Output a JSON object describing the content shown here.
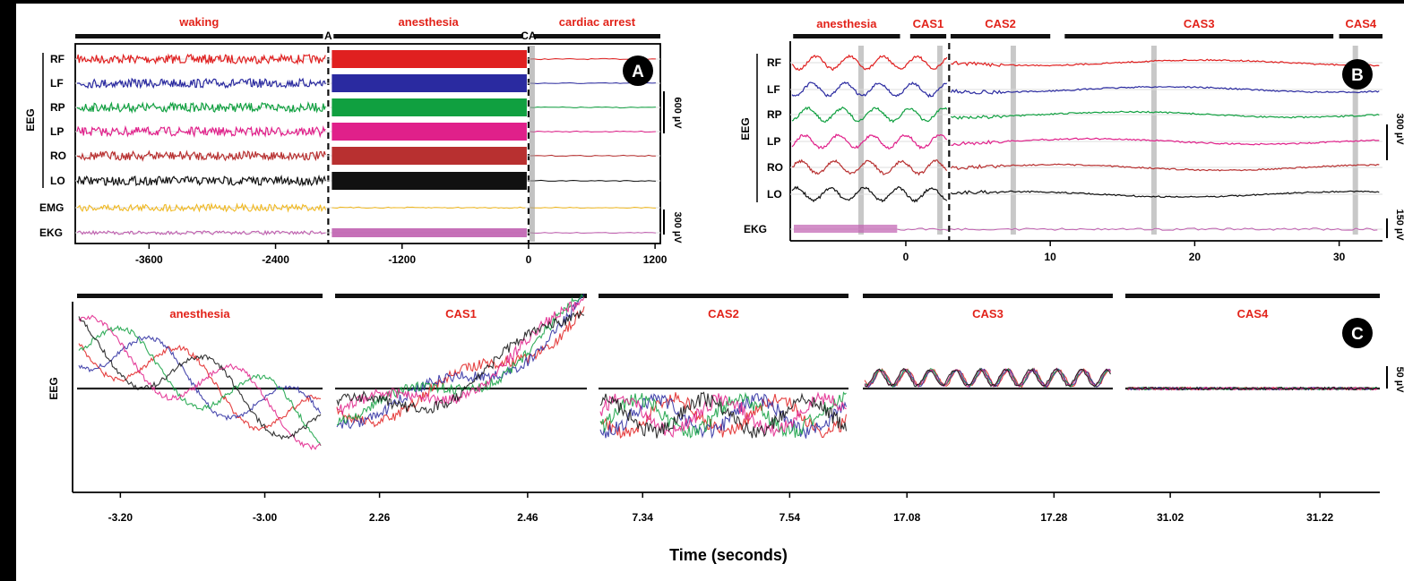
{
  "figure": {
    "xlabel": "Time (seconds)"
  },
  "colors": {
    "RF": "#e02020",
    "LF": "#2a2aa0",
    "RP": "#10a040",
    "LP": "#e0208a",
    "RO": "#b83030",
    "LO": "#111111",
    "EMG": "#f0b820",
    "EKG": "#c060b0"
  },
  "chart_data": [
    {
      "panel": "A",
      "type": "line",
      "ylabel": "EEG",
      "channels": [
        "RF",
        "LF",
        "RP",
        "LP",
        "RO",
        "LO"
      ],
      "extra_channels": [
        "EMG",
        "EKG"
      ],
      "segments": [
        {
          "label": "waking",
          "start": -4300,
          "end": -1950
        },
        {
          "label": "anesthesia",
          "start": -1850,
          "end": -50
        },
        {
          "label": "cardiac arrest",
          "start": 50,
          "end": 1250
        }
      ],
      "markers": [
        {
          "label": "A",
          "x": -1900
        },
        {
          "label": "CA",
          "x": 0
        }
      ],
      "x_ticks": [
        {
          "label": "-3600",
          "value": -3600
        },
        {
          "label": "-2400",
          "value": -2400
        },
        {
          "label": "-1200",
          "value": -1200
        },
        {
          "label": "0",
          "value": 0
        },
        {
          "label": "1200",
          "value": 1200
        }
      ],
      "xlim": [
        -4300,
        1250
      ],
      "scale_bars": [
        {
          "label": "600 µV",
          "for": "EEG"
        },
        {
          "label": "300 µV",
          "for": "EMG/EKG"
        }
      ]
    },
    {
      "panel": "B",
      "type": "line",
      "ylabel": "EEG",
      "channels": [
        "RF",
        "LF",
        "RP",
        "LP",
        "RO",
        "LO"
      ],
      "extra_channels": [
        "EKG"
      ],
      "segments": [
        {
          "label": "anesthesia",
          "start": -7.8,
          "end": -0.4
        },
        {
          "label": "CAS1",
          "start": 0.3,
          "end": 2.8
        },
        {
          "label": "CAS2",
          "start": 3.1,
          "end": 10
        },
        {
          "label": "CAS3",
          "start": 11,
          "end": 29.6
        },
        {
          "label": "CAS4",
          "start": 30,
          "end": 33
        }
      ],
      "markers": [
        {
          "label": "",
          "x": 3
        }
      ],
      "highlights": [
        -3.1,
        2.36,
        7.44,
        17.18,
        31.12
      ],
      "x_ticks": [
        {
          "label": "0",
          "value": 0
        },
        {
          "label": "10",
          "value": 10
        },
        {
          "label": "20",
          "value": 20
        },
        {
          "label": "30",
          "value": 30
        }
      ],
      "xlim": [
        -8,
        33
      ],
      "scale_bars": [
        {
          "label": "300 µV",
          "for": "EEG"
        },
        {
          "label": "150 µV",
          "for": "EKG"
        }
      ]
    },
    {
      "panel": "C",
      "type": "line",
      "ylabel": "EEG",
      "windows": [
        {
          "label": "anesthesia",
          "ticks": [
            {
              "label": "-3.20",
              "value": -3.2
            },
            {
              "label": "-3.00",
              "value": -3.0
            }
          ],
          "xlim": [
            -3.26,
            -2.92
          ]
        },
        {
          "label": "CAS1",
          "ticks": [
            {
              "label": "2.26",
              "value": 2.26
            },
            {
              "label": "2.46",
              "value": 2.46
            }
          ],
          "xlim": [
            2.2,
            2.54
          ]
        },
        {
          "label": "CAS2",
          "ticks": [
            {
              "label": "7.34",
              "value": 7.34
            },
            {
              "label": "7.54",
              "value": 7.54
            }
          ],
          "xlim": [
            7.28,
            7.62
          ]
        },
        {
          "label": "CAS3",
          "ticks": [
            {
              "label": "17.08",
              "value": 17.08
            },
            {
              "label": "17.28",
              "value": 17.28
            }
          ],
          "xlim": [
            17.02,
            17.36
          ]
        },
        {
          "label": "CAS4",
          "ticks": [
            {
              "label": "31.02",
              "value": 31.02
            },
            {
              "label": "31.22",
              "value": 31.22
            }
          ],
          "xlim": [
            30.96,
            31.3
          ]
        }
      ],
      "scale_bars": [
        {
          "label": "50 µV",
          "for": "EEG"
        }
      ]
    }
  ]
}
